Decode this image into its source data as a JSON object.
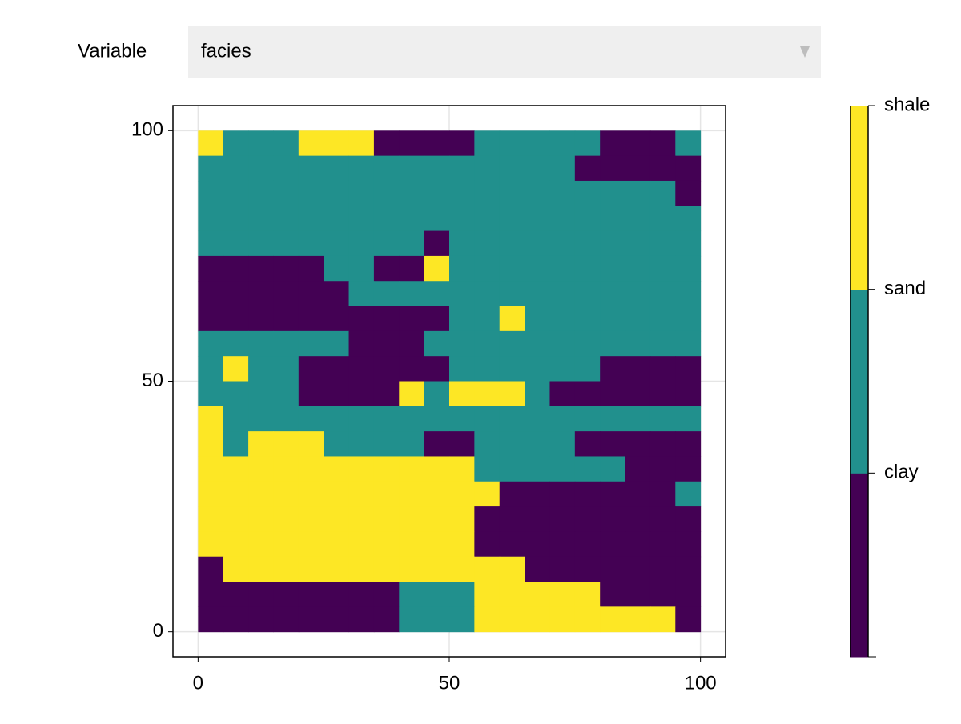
{
  "controls": {
    "label": "Variable",
    "selected": "facies"
  },
  "chart_data": {
    "type": "heatmap",
    "x_range": [
      0,
      100
    ],
    "y_range": [
      0,
      100
    ],
    "xlim": [
      -5,
      105
    ],
    "ylim": [
      -5,
      105
    ],
    "xticks": [
      0,
      50,
      100
    ],
    "yticks": [
      0,
      50,
      100
    ],
    "grid": true,
    "colors": [
      "#440154",
      "#21908d",
      "#fde725"
    ],
    "colorbar": {
      "lim": [
        0,
        3
      ],
      "ticks": [
        {
          "value": 1,
          "label": "clay"
        },
        {
          "value": 2,
          "label": "sand"
        },
        {
          "value": 3,
          "label": "shale"
        }
      ]
    },
    "z": [
      [
        2,
        1,
        1,
        1,
        2,
        2,
        2,
        0,
        0,
        0,
        0,
        1,
        1,
        1,
        1,
        1,
        0,
        0,
        0,
        1
      ],
      [
        1,
        1,
        1,
        1,
        1,
        1,
        1,
        1,
        1,
        1,
        1,
        1,
        1,
        1,
        1,
        0,
        0,
        0,
        0,
        0
      ],
      [
        1,
        1,
        1,
        1,
        1,
        1,
        1,
        1,
        1,
        1,
        1,
        1,
        1,
        1,
        1,
        1,
        1,
        1,
        1,
        0
      ],
      [
        1,
        1,
        1,
        1,
        1,
        1,
        1,
        1,
        1,
        1,
        1,
        1,
        1,
        1,
        1,
        1,
        1,
        1,
        1,
        1
      ],
      [
        1,
        1,
        1,
        1,
        1,
        1,
        1,
        1,
        1,
        0,
        1,
        1,
        1,
        1,
        1,
        1,
        1,
        1,
        1,
        1
      ],
      [
        0,
        0,
        0,
        0,
        0,
        1,
        1,
        0,
        0,
        2,
        1,
        1,
        1,
        1,
        1,
        1,
        1,
        1,
        1,
        1
      ],
      [
        0,
        0,
        0,
        0,
        0,
        0,
        1,
        1,
        1,
        1,
        1,
        1,
        1,
        1,
        1,
        1,
        1,
        1,
        1,
        1
      ],
      [
        0,
        0,
        0,
        0,
        0,
        0,
        0,
        0,
        0,
        0,
        1,
        1,
        2,
        1,
        1,
        1,
        1,
        1,
        1,
        1
      ],
      [
        1,
        1,
        1,
        1,
        1,
        1,
        0,
        0,
        0,
        1,
        1,
        1,
        1,
        1,
        1,
        1,
        1,
        1,
        1,
        1
      ],
      [
        1,
        2,
        1,
        1,
        0,
        0,
        0,
        0,
        0,
        0,
        1,
        1,
        1,
        1,
        1,
        1,
        0,
        0,
        0,
        0
      ],
      [
        1,
        1,
        1,
        1,
        0,
        0,
        0,
        0,
        2,
        1,
        2,
        2,
        2,
        1,
        0,
        0,
        0,
        0,
        0,
        0
      ],
      [
        2,
        1,
        1,
        1,
        1,
        1,
        1,
        1,
        1,
        1,
        1,
        1,
        1,
        1,
        1,
        1,
        1,
        1,
        1,
        1
      ],
      [
        2,
        1,
        2,
        2,
        2,
        1,
        1,
        1,
        1,
        0,
        0,
        1,
        1,
        1,
        1,
        0,
        0,
        0,
        0,
        0
      ],
      [
        2,
        2,
        2,
        2,
        2,
        2,
        2,
        2,
        2,
        2,
        2,
        1,
        1,
        1,
        1,
        1,
        1,
        0,
        0,
        0
      ],
      [
        2,
        2,
        2,
        2,
        2,
        2,
        2,
        2,
        2,
        2,
        2,
        2,
        0,
        0,
        0,
        0,
        0,
        0,
        0,
        1
      ],
      [
        2,
        2,
        2,
        2,
        2,
        2,
        2,
        2,
        2,
        2,
        2,
        0,
        0,
        0,
        0,
        0,
        0,
        0,
        0,
        0
      ],
      [
        2,
        2,
        2,
        2,
        2,
        2,
        2,
        2,
        2,
        2,
        2,
        0,
        0,
        0,
        0,
        0,
        0,
        0,
        0,
        0
      ],
      [
        0,
        2,
        2,
        2,
        2,
        2,
        2,
        2,
        2,
        2,
        2,
        2,
        2,
        0,
        0,
        0,
        0,
        0,
        0,
        0
      ],
      [
        0,
        0,
        0,
        0,
        0,
        0,
        0,
        0,
        1,
        1,
        1,
        2,
        2,
        2,
        2,
        2,
        0,
        0,
        0,
        0
      ],
      [
        0,
        0,
        0,
        0,
        0,
        0,
        0,
        0,
        1,
        1,
        1,
        2,
        2,
        2,
        2,
        2,
        2,
        2,
        2,
        0
      ]
    ]
  }
}
